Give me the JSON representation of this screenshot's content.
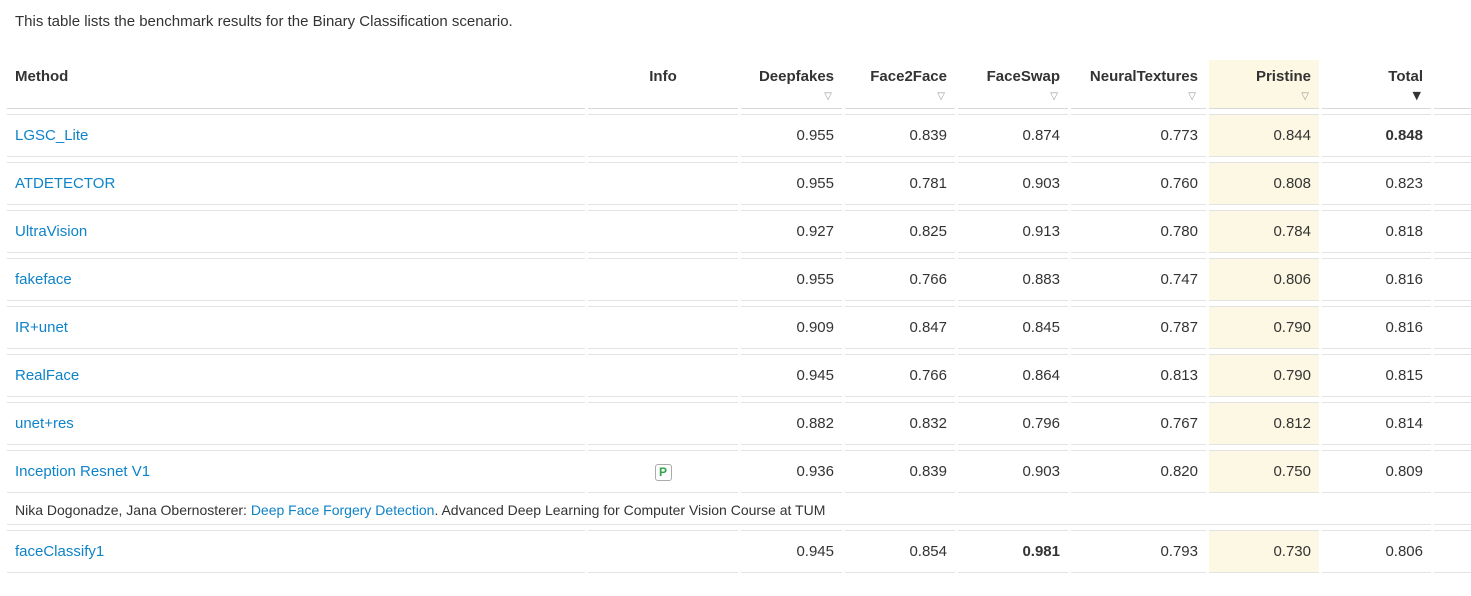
{
  "intro": "This table lists the benchmark results for the Binary Classification scenario.",
  "colors": {
    "link_blue": "#0e83c8",
    "pristine_highlight": "#fcf8e3",
    "row_border": "#e3e3e3",
    "text": "#333333",
    "sort_inactive": "#999999",
    "sort_active": "#333333",
    "info_badge_green": "#2fa44b"
  },
  "table": {
    "columns": [
      {
        "label": "Method",
        "sortable": false
      },
      {
        "label": "Info",
        "sortable": false
      },
      {
        "label": "Deepfakes",
        "sortable": true,
        "sort_glyph": "▽"
      },
      {
        "label": "Face2Face",
        "sortable": true,
        "sort_glyph": "▽"
      },
      {
        "label": "FaceSwap",
        "sortable": true,
        "sort_glyph": "▽"
      },
      {
        "label": "NeuralTextures",
        "sortable": true,
        "sort_glyph": "▽"
      },
      {
        "label": "Pristine",
        "sortable": true,
        "sort_glyph": "▽",
        "highlighted": true
      },
      {
        "label": "Total",
        "sortable": true,
        "sort_glyph": "▼",
        "sorted": "desc"
      }
    ],
    "value_keys": [
      "deepfakes",
      "face2face",
      "faceswap",
      "neuraltextures",
      "pristine",
      "total"
    ],
    "rows": [
      {
        "method": "LGSC_Lite",
        "values": [
          "0.955",
          "0.839",
          "0.874",
          "0.773",
          "0.844",
          "0.848"
        ],
        "bold": [
          5
        ]
      },
      {
        "method": "ATDETECTOR",
        "values": [
          "0.955",
          "0.781",
          "0.903",
          "0.760",
          "0.808",
          "0.823"
        ]
      },
      {
        "method": "UltraVision",
        "values": [
          "0.927",
          "0.825",
          "0.913",
          "0.780",
          "0.784",
          "0.818"
        ]
      },
      {
        "method": "fakeface",
        "values": [
          "0.955",
          "0.766",
          "0.883",
          "0.747",
          "0.806",
          "0.816"
        ]
      },
      {
        "method": "IR+unet",
        "values": [
          "0.909",
          "0.847",
          "0.845",
          "0.787",
          "0.790",
          "0.816"
        ]
      },
      {
        "method": "RealFace",
        "values": [
          "0.945",
          "0.766",
          "0.864",
          "0.813",
          "0.790",
          "0.815"
        ]
      },
      {
        "method": "unet+res",
        "values": [
          "0.882",
          "0.832",
          "0.796",
          "0.767",
          "0.812",
          "0.814"
        ]
      },
      {
        "method": "Inception Resnet V1",
        "info_icon": "P",
        "values": [
          "0.936",
          "0.839",
          "0.903",
          "0.820",
          "0.750",
          "0.809"
        ],
        "citation": {
          "prefix": "Nika Dogonadze, Jana Obernosterer: ",
          "link": "Deep Face Forgery Detection",
          "suffix": ". Advanced Deep Learning for Computer Vision Course at TUM"
        }
      },
      {
        "method": "faceClassify1",
        "values": [
          "0.945",
          "0.854",
          "0.981",
          "0.793",
          "0.730",
          "0.806"
        ],
        "bold": [
          2
        ]
      }
    ]
  }
}
